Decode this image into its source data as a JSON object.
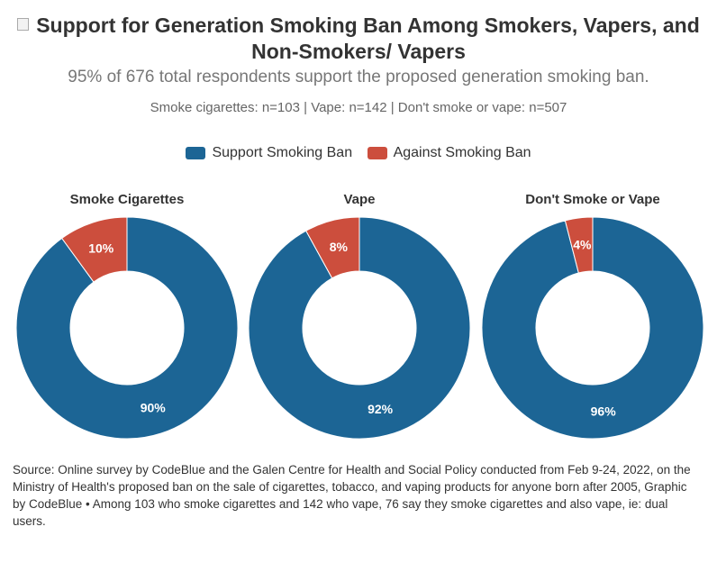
{
  "title": "Support for Generation Smoking Ban Among Smokers, Vapers, and Non-Smokers/ Vapers",
  "subtitle": "95% of 676 total respondents support the proposed generation smoking ban.",
  "description": "Smoke cigarettes: n=103 | Vape: n=142 | Don't smoke or vape: n=507",
  "legend": [
    {
      "label": "Support Smoking Ban",
      "color": "#1c6595"
    },
    {
      "label": "Against Smoking Ban",
      "color": "#cc4e3d"
    }
  ],
  "notes": "Source: Online survey by CodeBlue and the Galen Centre for Health and Social Policy conducted from Feb 9-24, 2022, on the Ministry of Health's proposed ban on the sale of cigarettes, tobacco, and vaping products for anyone born after 2005, Graphic by CodeBlue • Among 103 who smoke cigarettes and 142 who vape, 76 say they smoke cigarettes and also vape, ie: dual users.",
  "chart_data": [
    {
      "type": "pie",
      "title": "Smoke Cigarettes",
      "categories": [
        "Support Smoking Ban",
        "Against Smoking Ban"
      ],
      "values": [
        90,
        10
      ],
      "labels": [
        "90%",
        "10%"
      ],
      "colors": [
        "#1c6595",
        "#cc4e3d"
      ]
    },
    {
      "type": "pie",
      "title": "Vape",
      "categories": [
        "Support Smoking Ban",
        "Against Smoking Ban"
      ],
      "values": [
        92,
        8
      ],
      "labels": [
        "92%",
        "8%"
      ],
      "colors": [
        "#1c6595",
        "#cc4e3d"
      ]
    },
    {
      "type": "pie",
      "title": "Don't Smoke or Vape",
      "categories": [
        "Support Smoking Ban",
        "Against Smoking Ban"
      ],
      "values": [
        96,
        4
      ],
      "labels": [
        "96%",
        "4%"
      ],
      "colors": [
        "#1c6595",
        "#cc4e3d"
      ]
    }
  ]
}
